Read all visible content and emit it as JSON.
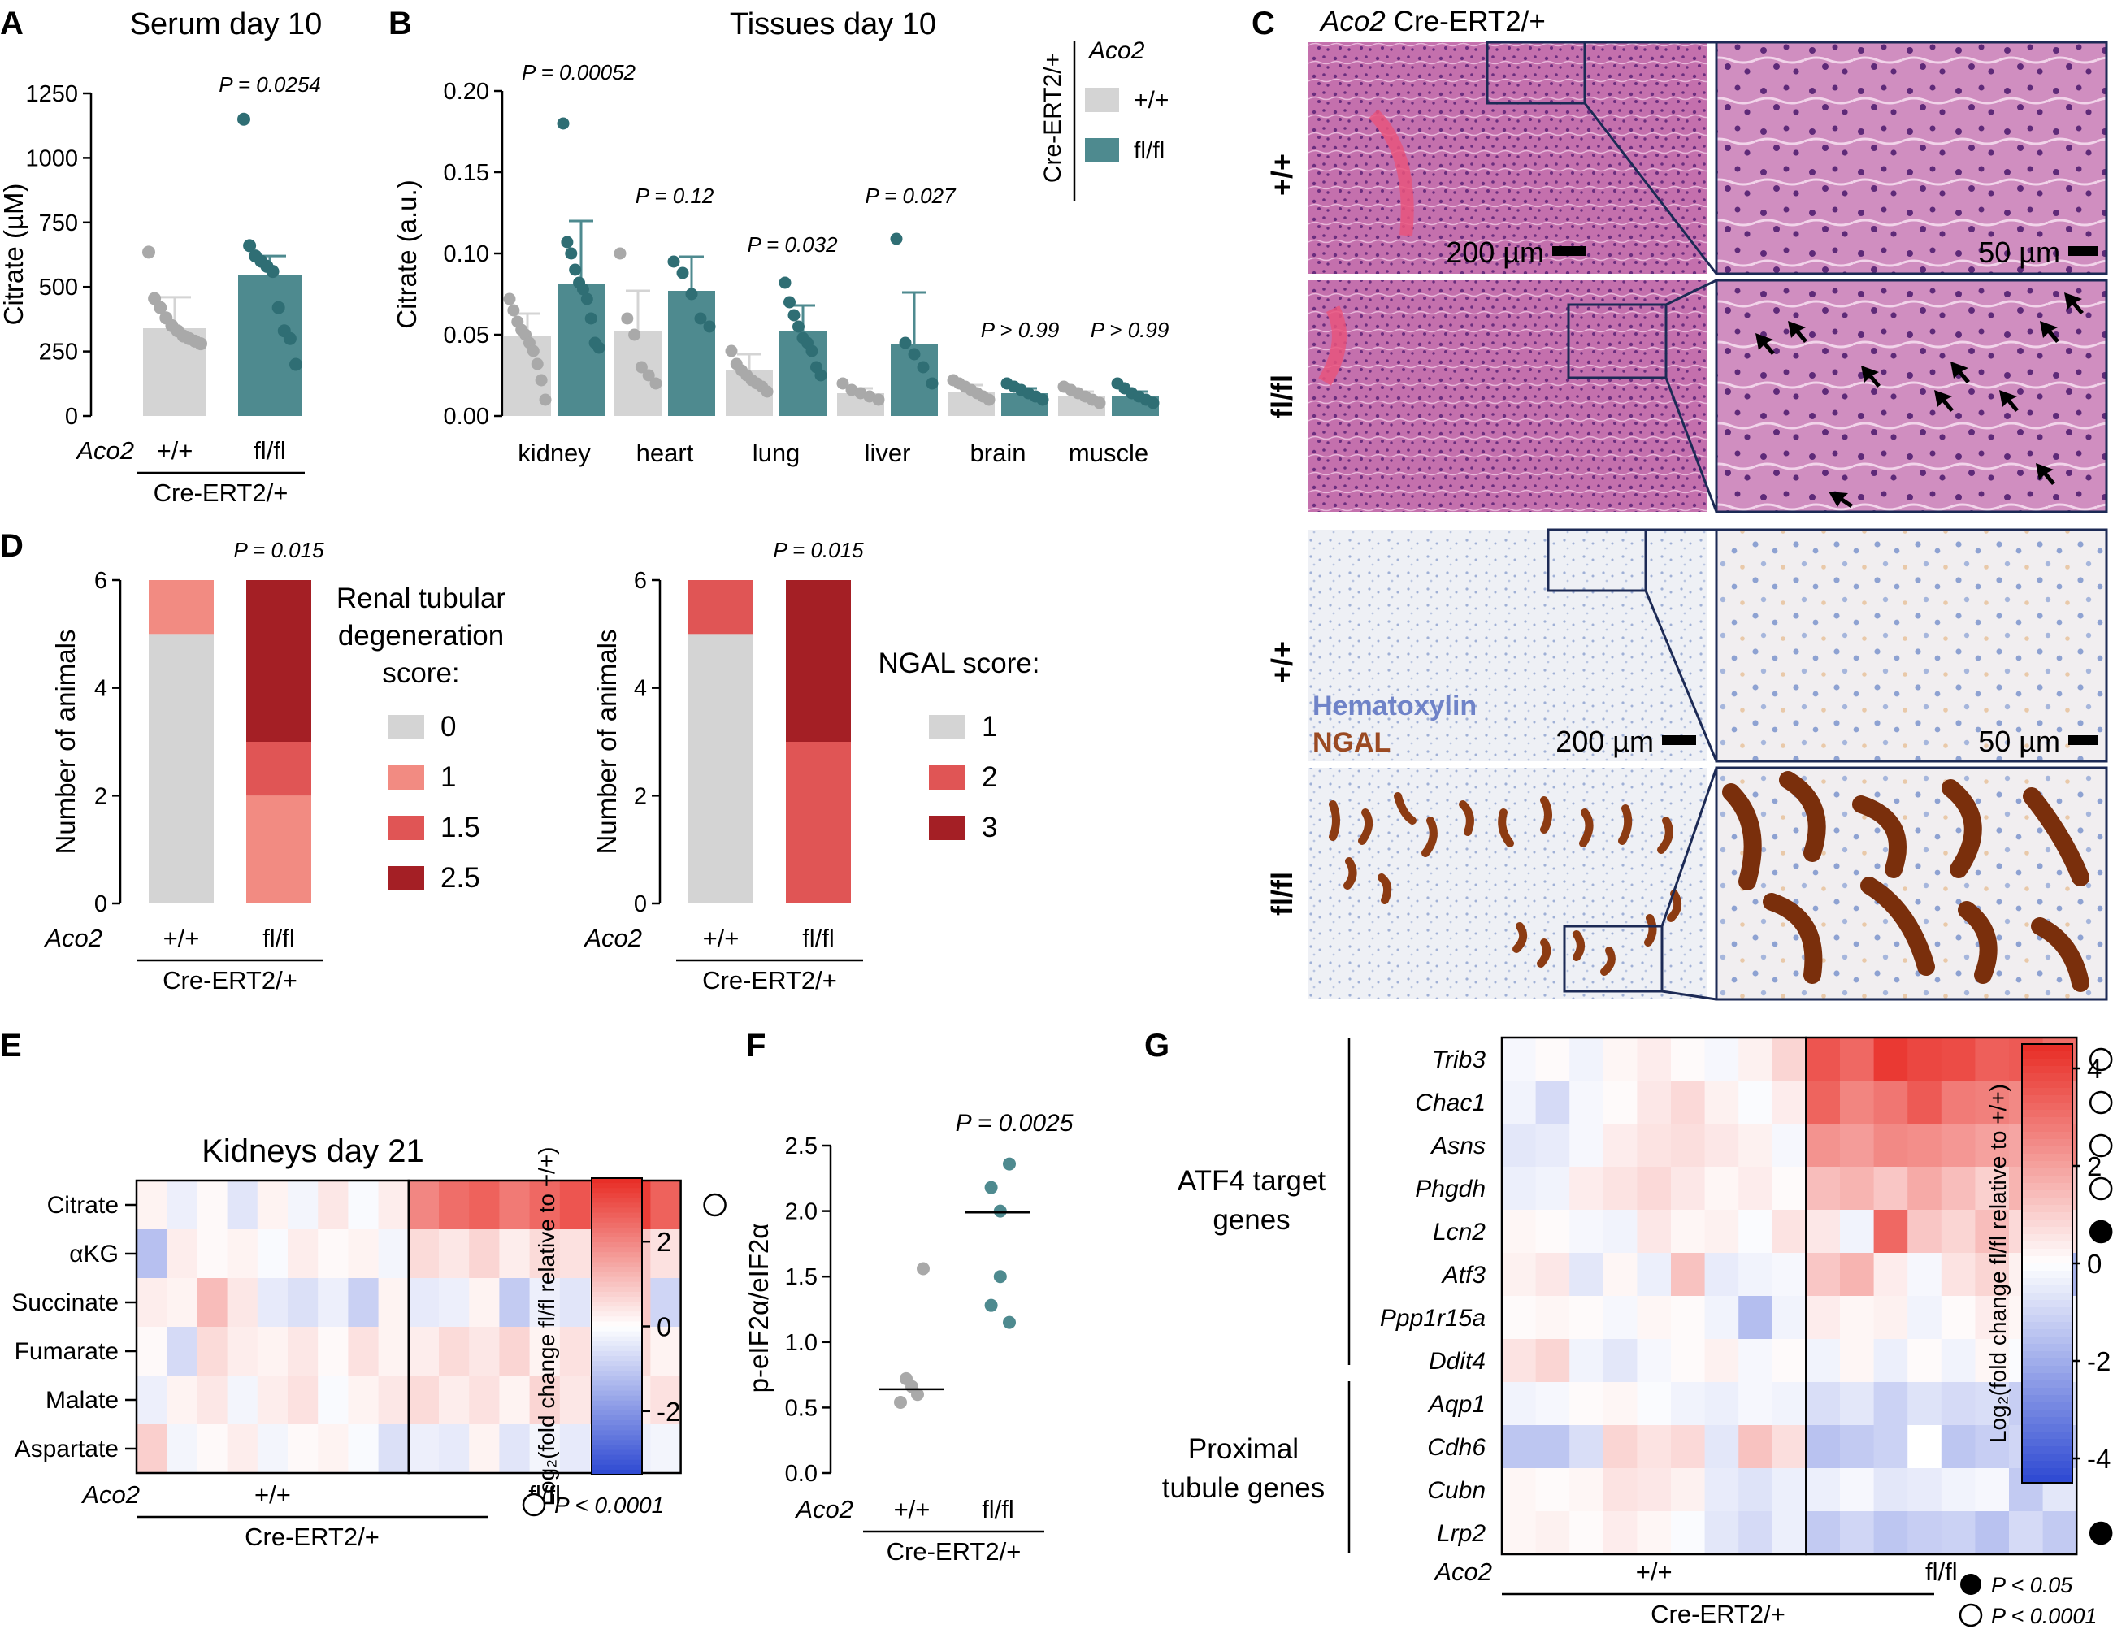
{
  "chart_data": [
    {
      "panel": "A",
      "type": "bar",
      "title": "Serum day 10",
      "ylabel": "Citrate (µM)",
      "ylim": [
        0,
        1250
      ],
      "yticks": [
        0,
        250,
        500,
        750,
        1000,
        1250
      ],
      "categories": [
        "+/+",
        "fl/fl"
      ],
      "genotype_label": "Aco2",
      "group_label": "Cre-ERT2/+",
      "values": [
        340,
        545
      ],
      "errors": [
        120,
        75
      ],
      "points": [
        [
          635,
          455,
          420,
          380,
          350,
          330,
          310,
          300,
          290,
          280
        ],
        [
          1150,
          660,
          620,
          600,
          580,
          560,
          420,
          330,
          300,
          200
        ]
      ],
      "annotation": "P = 0.0254",
      "colors": [
        "#d4d4d4",
        "#4e8a8f"
      ],
      "point_colors": [
        "#a9a9a9",
        "#2f6e74"
      ]
    },
    {
      "panel": "B",
      "type": "bar",
      "title": "Tissues day 10",
      "ylabel": "Citrate (a.u.)",
      "ylim": [
        0,
        0.2
      ],
      "yticks": [
        "0.00",
        "0.05",
        "0.10",
        "0.15",
        "0.20"
      ],
      "categories": [
        "kidney",
        "heart",
        "lung",
        "liver",
        "brain",
        "muscle"
      ],
      "series": [
        {
          "name": "+/+",
          "values": [
            0.049,
            0.052,
            0.028,
            0.014,
            0.015,
            0.012
          ],
          "errors": [
            0.014,
            0.025,
            0.01,
            0.003,
            0.004,
            0.003
          ]
        },
        {
          "name": "fl/fl",
          "values": [
            0.081,
            0.077,
            0.052,
            0.044,
            0.014,
            0.012
          ],
          "errors": [
            0.039,
            0.021,
            0.016,
            0.032,
            0.003,
            0.003
          ]
        }
      ],
      "points": [
        [
          [
            0.072,
            0.065,
            0.058,
            0.053,
            0.05,
            0.045,
            0.04,
            0.032,
            0.022,
            0.01
          ],
          [
            0.18,
            0.107,
            0.1,
            0.09,
            0.082,
            0.078,
            0.072,
            0.06,
            0.045,
            0.042
          ]
        ],
        [
          [
            0.1,
            0.06,
            0.05,
            0.03,
            0.025,
            0.02
          ],
          [
            0.095,
            0.088,
            0.075,
            0.06,
            0.055
          ]
        ],
        [
          [
            0.04,
            0.032,
            0.028,
            0.025,
            0.022,
            0.02,
            0.018,
            0.015
          ],
          [
            0.082,
            0.07,
            0.062,
            0.055,
            0.048,
            0.045,
            0.04,
            0.03,
            0.025
          ]
        ],
        [
          [
            0.02,
            0.016,
            0.014,
            0.012,
            0.01
          ],
          [
            0.109,
            0.045,
            0.038,
            0.03,
            0.02
          ]
        ],
        [
          [
            0.022,
            0.02,
            0.018,
            0.016,
            0.014,
            0.012,
            0.01
          ],
          [
            0.02,
            0.018,
            0.016,
            0.014,
            0.012,
            0.01
          ]
        ],
        [
          [
            0.018,
            0.016,
            0.014,
            0.012,
            0.01,
            0.008
          ],
          [
            0.02,
            0.017,
            0.014,
            0.012,
            0.01,
            0.008
          ]
        ]
      ],
      "annotations": [
        "P = 0.00052",
        "P = 0.12",
        "P = 0.032",
        "P = 0.027",
        "P > 0.99",
        "P > 0.99"
      ],
      "legend_group": "Cre-ERT2/+",
      "legend_title": "Aco2",
      "colors": [
        "#d4d4d4",
        "#4e8a8f"
      ],
      "point_colors": [
        "#a9a9a9",
        "#2f6e74"
      ]
    },
    {
      "panel": "D1",
      "type": "bar",
      "stacked": true,
      "ylabel": "Number of animals",
      "ylim": [
        0,
        6
      ],
      "yticks": [
        0,
        2,
        4,
        6
      ],
      "categories": [
        "+/+",
        "fl/fl"
      ],
      "genotype_label": "Aco2",
      "group_label": "Cre-ERT2/+",
      "legend_title": [
        "Renal tubular",
        "degeneration",
        "score:"
      ],
      "series": [
        {
          "name": "0",
          "values": [
            5,
            0
          ],
          "color": "#d4d4d4"
        },
        {
          "name": "1",
          "values": [
            1,
            2
          ],
          "color": "#f28b82"
        },
        {
          "name": "1.5",
          "values": [
            0,
            1
          ],
          "color": "#e05555"
        },
        {
          "name": "2.5",
          "values": [
            0,
            3
          ],
          "color": "#a41f25"
        }
      ],
      "annotation": "P = 0.015"
    },
    {
      "panel": "D2",
      "type": "bar",
      "stacked": true,
      "ylabel": "Number of animals",
      "ylim": [
        0,
        6
      ],
      "yticks": [
        0,
        2,
        4,
        6
      ],
      "categories": [
        "+/+",
        "fl/fl"
      ],
      "genotype_label": "Aco2",
      "group_label": "Cre-ERT2/+",
      "legend_title": [
        "NGAL score:"
      ],
      "series": [
        {
          "name": "1",
          "values": [
            5,
            0
          ],
          "color": "#d4d4d4"
        },
        {
          "name": "2",
          "values": [
            1,
            3
          ],
          "color": "#e05555"
        },
        {
          "name": "3",
          "values": [
            0,
            3
          ],
          "color": "#a41f25"
        }
      ],
      "annotation": "P = 0.015"
    },
    {
      "panel": "E",
      "type": "heatmap",
      "title": "Kidneys day 21",
      "rows": [
        "Citrate",
        "αKG",
        "Succinate",
        "Fumarate",
        "Malate",
        "Aspartate"
      ],
      "groups": [
        "+/+",
        "fl/fl"
      ],
      "genotype_label": "Aco2",
      "group_label": "Cre-ERT2/+",
      "values": [
        [
          0.2,
          -0.3,
          0.1,
          -0.5,
          0.2,
          -0.2,
          0.4,
          -0.1,
          0.3,
          2.0,
          2.4,
          2.6,
          2.2,
          2.5,
          2.8,
          2.4,
          3.2,
          2.6
        ],
        [
          -1.2,
          0.3,
          0.1,
          0.2,
          -0.1,
          0.3,
          0.1,
          0.2,
          -0.2,
          0.6,
          0.4,
          0.7,
          0.3,
          0.6,
          0.5,
          0.4,
          0.9,
          0.5
        ],
        [
          0.3,
          0.2,
          1.1,
          0.4,
          -0.4,
          -0.6,
          -0.3,
          -0.9,
          0.2,
          -0.4,
          -0.3,
          0.2,
          -1.0,
          -0.3,
          -0.5,
          -0.2,
          0.9,
          -0.8
        ],
        [
          0.1,
          -0.7,
          0.6,
          0.3,
          0.2,
          0.4,
          0.1,
          0.5,
          0.2,
          0.3,
          0.6,
          0.4,
          0.7,
          0.2,
          0.5,
          0.3,
          0.6,
          0.2
        ],
        [
          -0.3,
          0.2,
          0.4,
          -0.2,
          0.3,
          0.5,
          -0.1,
          0.2,
          0.4,
          0.6,
          0.3,
          0.5,
          0.2,
          0.7,
          0.4,
          0.6,
          0.3,
          0.5
        ],
        [
          0.8,
          -0.2,
          0.1,
          0.3,
          -0.2,
          0.1,
          0.2,
          -0.1,
          -0.6,
          -0.3,
          -0.4,
          0.2,
          -0.5,
          -0.2,
          -0.4,
          0.1,
          -0.3,
          -0.2
        ]
      ],
      "colorbar_ticks": [
        2,
        0,
        -2
      ],
      "colorbar_label": "Log₂(fold change fl/fl relative to +/+)",
      "significance": [
        "open",
        null,
        null,
        null,
        null,
        null
      ],
      "legend": "P < 0.0001"
    },
    {
      "panel": "F",
      "type": "scatter",
      "ylabel": "p-eIF2α/eIF2α",
      "ylim": [
        0,
        2.5
      ],
      "yticks": [
        "0.0",
        "0.5",
        "1.0",
        "1.5",
        "2.0",
        "2.5"
      ],
      "categories": [
        "+/+",
        "fl/fl"
      ],
      "genotype_label": "Aco2",
      "group_label": "Cre-ERT2/+",
      "points": [
        [
          1.56,
          0.72,
          0.66,
          0.6,
          0.54
        ],
        [
          2.36,
          2.18,
          2.0,
          1.5,
          1.28,
          1.15
        ]
      ],
      "medians": [
        0.64,
        1.99
      ],
      "annotation": "P = 0.0025",
      "point_colors": [
        "#a9a9a9",
        "#4e8a8f"
      ]
    },
    {
      "panel": "G",
      "type": "heatmap",
      "rows": [
        "Trib3",
        "Chac1",
        "Asns",
        "Phgdh",
        "Lcn2",
        "Atf3",
        "Ppp1r15a",
        "Ddit4",
        "Aqp1",
        "Cdh6",
        "Cubn",
        "Lrp2"
      ],
      "row_groups": [
        {
          "label": [
            "ATF4 target",
            "genes"
          ],
          "rows": 8
        },
        {
          "label": [
            "Proximal",
            "tubule genes"
          ],
          "rows": 4
        }
      ],
      "groups": [
        "+/+",
        "fl/fl"
      ],
      "genotype_label": "Aco2",
      "group_label": "Cre-ERT2/+",
      "values": [
        [
          -0.2,
          0.1,
          -0.3,
          0.2,
          0.4,
          0.1,
          -0.2,
          0.3,
          0.9,
          3.6,
          3.2,
          4.2,
          3.9,
          3.8,
          3.4,
          3.5,
          3.1
        ],
        [
          -0.3,
          -0.9,
          -0.2,
          0.1,
          0.5,
          0.8,
          0.3,
          -0.1,
          0.4,
          3.3,
          2.6,
          2.9,
          3.5,
          2.8,
          2.7,
          2.5,
          2.4
        ],
        [
          -0.6,
          -0.5,
          -0.2,
          0.4,
          0.6,
          0.7,
          0.5,
          0.3,
          -0.2,
          2.3,
          2.1,
          2.5,
          2.4,
          2.2,
          2.0,
          1.9,
          2.6
        ],
        [
          -0.4,
          -0.3,
          0.4,
          0.6,
          0.8,
          0.5,
          0.2,
          0.4,
          0.1,
          1.4,
          1.6,
          1.2,
          1.8,
          1.4,
          1.0,
          1.6,
          1.2
        ],
        [
          0.2,
          0.1,
          -0.2,
          -0.3,
          0.5,
          0.2,
          0.3,
          -0.1,
          0.6,
          0.5,
          -0.3,
          3.2,
          1.2,
          0.9,
          1.4,
          0.8,
          0.6
        ],
        [
          0.3,
          0.5,
          -0.6,
          0.2,
          -0.4,
          1.3,
          -0.5,
          -0.3,
          -0.2,
          1.2,
          1.6,
          0.4,
          -0.2,
          0.6,
          0.9,
          0.3,
          -1.8
        ],
        [
          0.1,
          0.2,
          0.1,
          -0.2,
          0.2,
          0.1,
          -0.3,
          -1.6,
          -0.3,
          0.4,
          0.2,
          0.3,
          -0.3,
          0.1,
          0.4,
          0.2,
          -0.2
        ],
        [
          0.6,
          0.9,
          -0.3,
          -0.6,
          -0.2,
          0.1,
          0.3,
          -0.2,
          0.1,
          -0.3,
          0.2,
          -0.4,
          0.1,
          -0.3,
          0.2,
          -0.1,
          -0.2
        ],
        [
          -0.3,
          -0.2,
          0.1,
          0.2,
          -0.1,
          -0.3,
          -0.4,
          -0.2,
          -0.3,
          -0.8,
          -0.6,
          -1.1,
          -0.7,
          -0.9,
          -0.8,
          -1.2,
          -0.7
        ],
        [
          -1.4,
          -1.4,
          -0.8,
          0.9,
          0.6,
          0.8,
          -0.6,
          1.3,
          0.7,
          -1.5,
          -1.3,
          -1.1,
          0.0,
          -1.4,
          -1.2,
          -1.0,
          -1.3
        ],
        [
          0.2,
          0.1,
          0.2,
          0.6,
          0.5,
          0.3,
          -0.5,
          -0.7,
          -0.4,
          -0.4,
          -0.2,
          -0.6,
          -0.5,
          -0.3,
          -0.2,
          -1.3,
          -0.6
        ],
        [
          0.2,
          0.3,
          0.1,
          0.4,
          0.2,
          -0.1,
          -0.6,
          -0.9,
          -0.4,
          -1.3,
          -1.0,
          -1.4,
          -1.2,
          -1.1,
          -1.5,
          -0.9,
          -1.3
        ]
      ],
      "colorbar_ticks": [
        4,
        2,
        0,
        -2,
        -4
      ],
      "colorbar_label": "Log₂(fold change fl/fl relative to +/+)",
      "significance": [
        "open",
        "open",
        "open",
        "open",
        "filled",
        null,
        null,
        null,
        null,
        null,
        null,
        "filled"
      ],
      "legend_filled": "P < 0.05",
      "legend_open": "P < 0.0001"
    }
  ],
  "panels": {
    "letters": [
      "A",
      "B",
      "C",
      "D",
      "E",
      "F",
      "G"
    ],
    "C": {
      "title_gene": "Aco2",
      "title_rest": "Cre-ERT2/+",
      "row_labels": [
        "+/+",
        "fl/fl",
        "+/+",
        "fl/fl"
      ],
      "scale_low": "200 µm",
      "scale_high": "50 µm",
      "stain_1": "Hematoxylin",
      "stain_2": "NGAL",
      "tiny_low": "200 µm",
      "tiny_high": "50 µm"
    }
  },
  "colors": {
    "teal": "#4e8a8f",
    "teal_dark": "#2f6e74",
    "grey": "#d4d4d4",
    "grey_dot": "#a9a9a9",
    "he_pink": "#d98fbd",
    "he_purple": "#9b4f9e",
    "ihc_bg": "#eef0f4",
    "ngal_brown": "#8c3b12"
  }
}
